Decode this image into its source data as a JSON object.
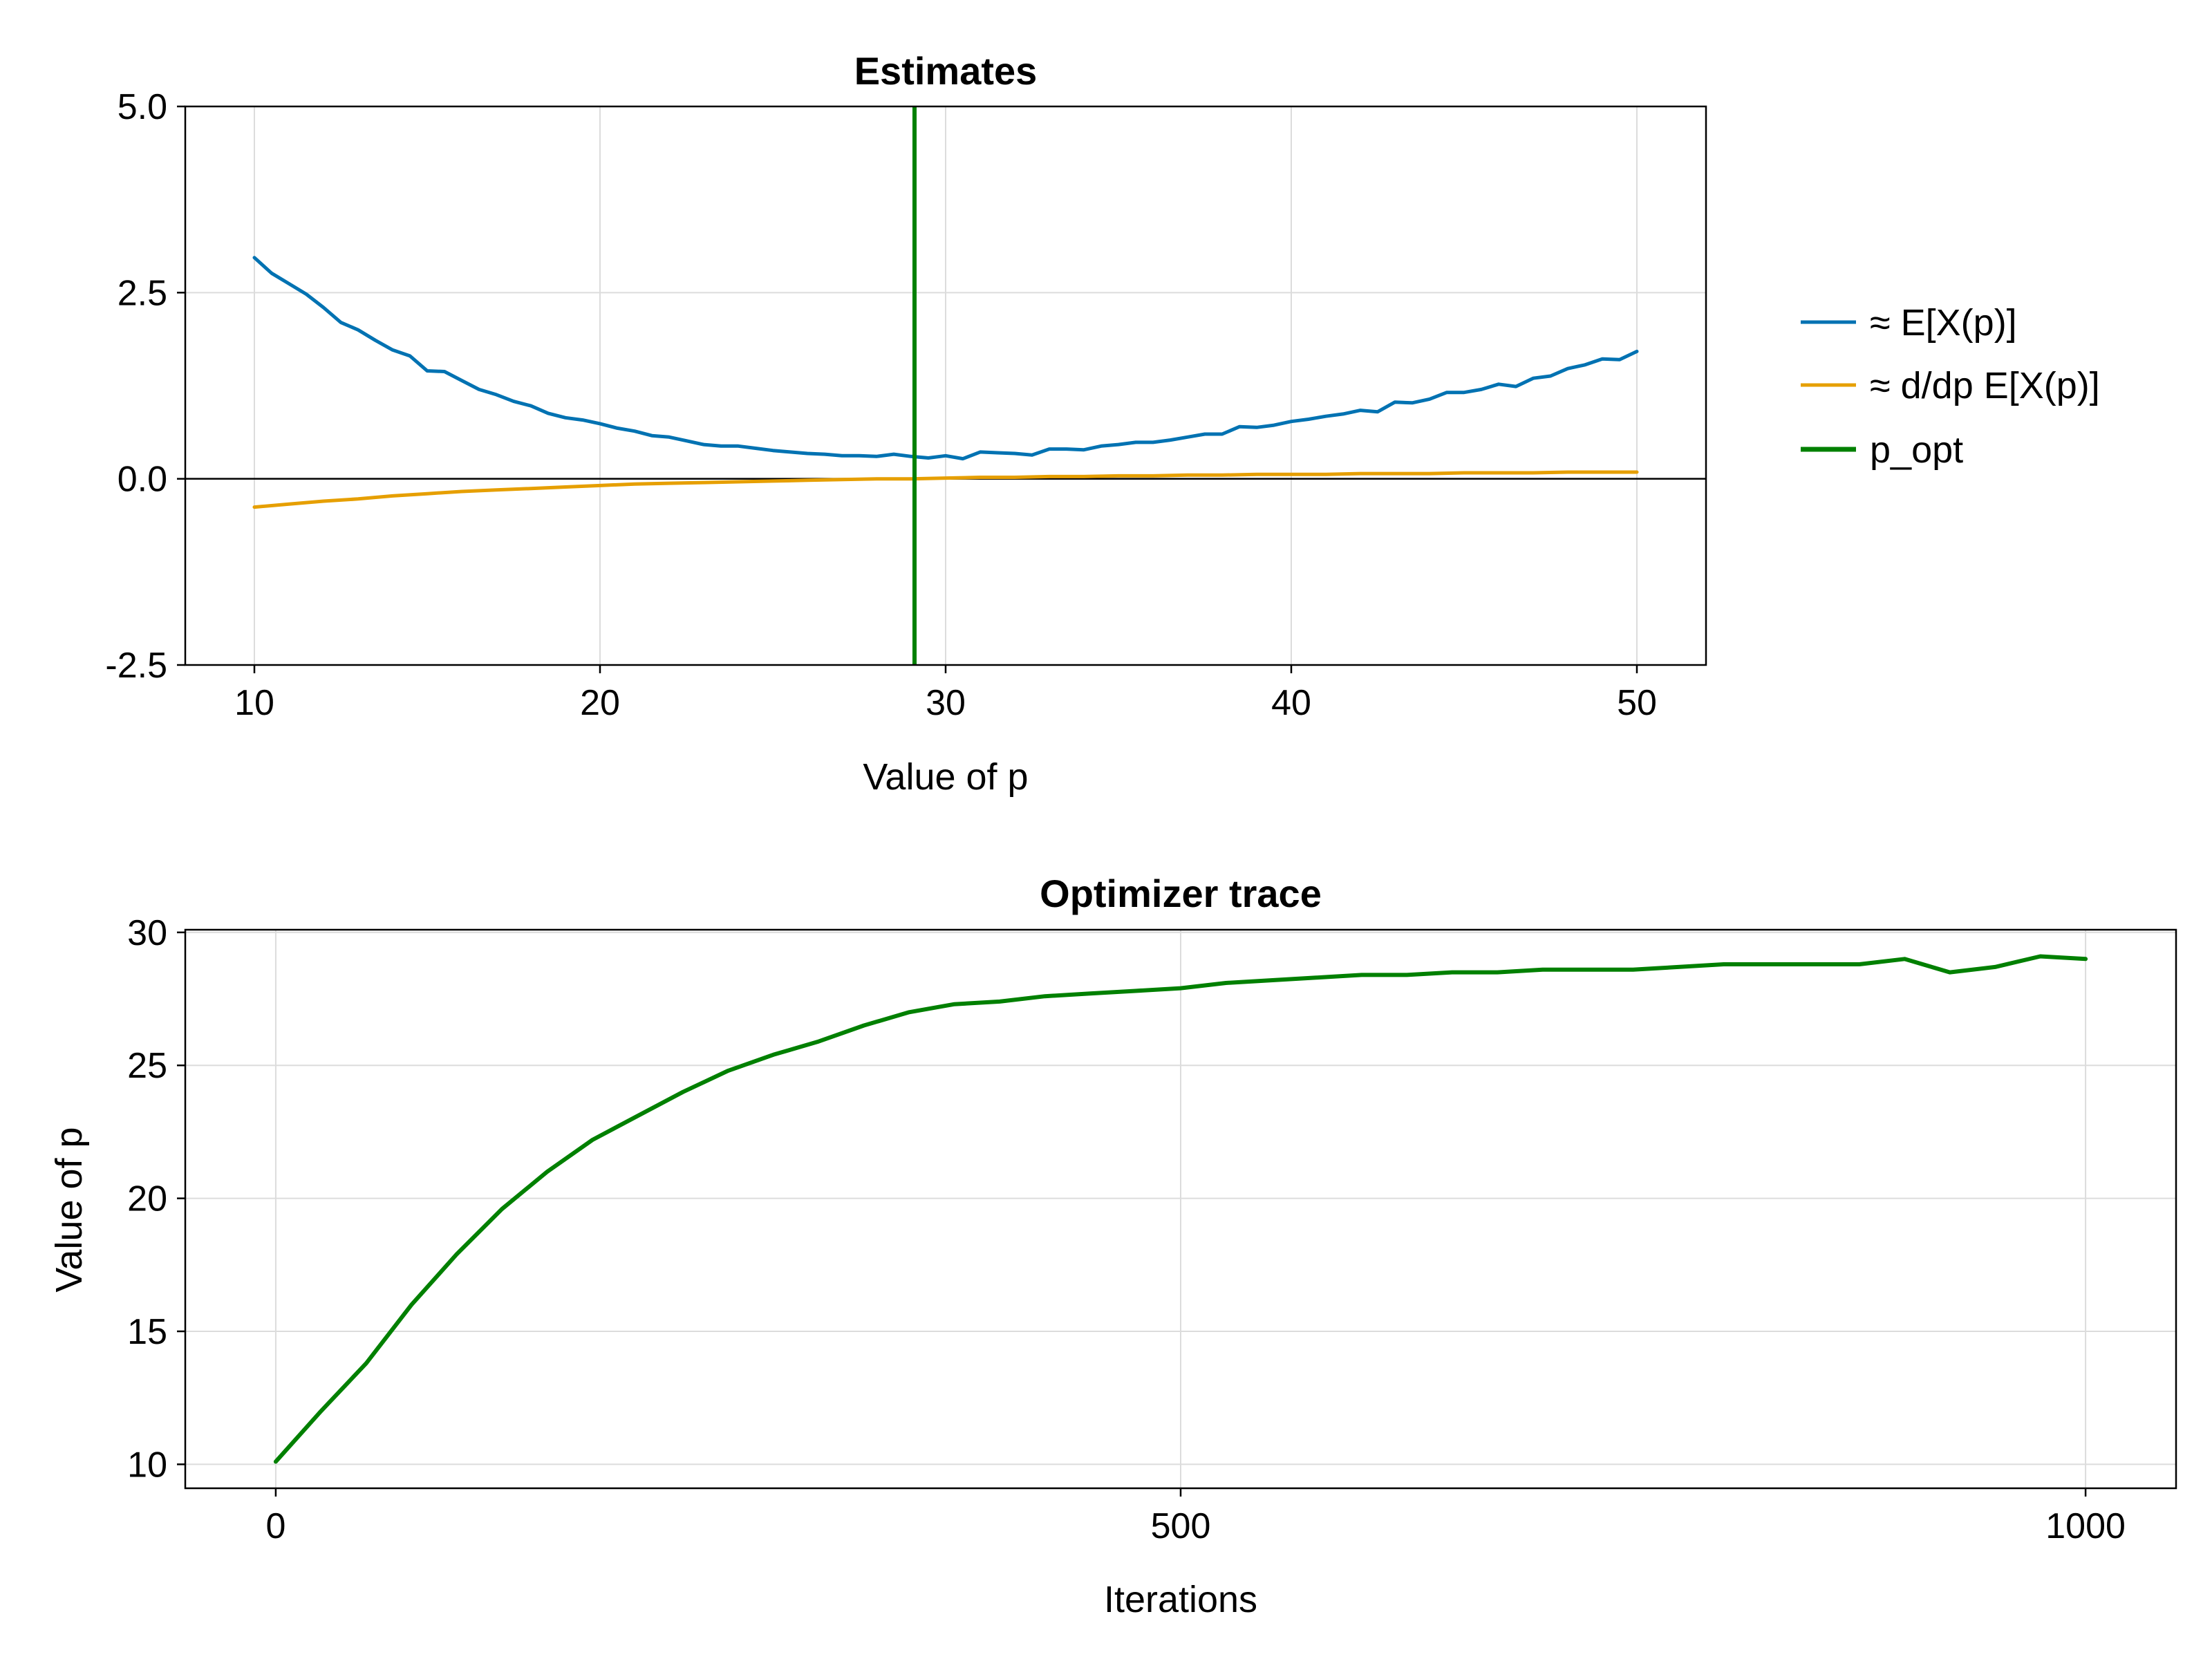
{
  "colors": {
    "blue": "#0072b2",
    "orange": "#e69f00",
    "green": "#008000",
    "zero_line": "#000000"
  },
  "chart_data": [
    {
      "type": "line",
      "title": "Estimates",
      "xlabel": "Value of p",
      "ylabel": "",
      "xlim": [
        8,
        52
      ],
      "ylim": [
        -2.5,
        5.0
      ],
      "xticks": [
        10,
        20,
        30,
        40,
        50
      ],
      "xtick_labels": [
        "10",
        "20",
        "30",
        "40",
        "50"
      ],
      "yticks": [
        -2.5,
        0.0,
        2.5,
        5.0
      ],
      "ytick_labels": [
        "-2.5",
        "0.0",
        "2.5",
        "5.0"
      ],
      "grid": true,
      "legend_position": "right",
      "hline": 0.0,
      "vline": {
        "name": "p_opt",
        "x": 29.1
      },
      "series": [
        {
          "name": "≈ E[X(p)]",
          "x": [
            10,
            10.5,
            11,
            11.5,
            12,
            12.5,
            13,
            13.5,
            14,
            14.5,
            15,
            15.5,
            16,
            16.5,
            17,
            17.5,
            18,
            18.5,
            19,
            19.5,
            20,
            20.5,
            21,
            21.5,
            22,
            22.5,
            23,
            23.5,
            24,
            24.5,
            25,
            25.5,
            26,
            26.5,
            27,
            27.5,
            28,
            28.5,
            29,
            29.5,
            30,
            30.5,
            31,
            31.5,
            32,
            32.5,
            33,
            33.5,
            34,
            34.5,
            35,
            35.5,
            36,
            36.5,
            37,
            37.5,
            38,
            38.5,
            39,
            39.5,
            40,
            40.5,
            41,
            41.5,
            42,
            42.5,
            43,
            43.5,
            44,
            44.5,
            45,
            45.5,
            46,
            46.5,
            47,
            47.5,
            48,
            48.5,
            49,
            49.5,
            50
          ],
          "y": [
            2.97,
            2.76,
            2.62,
            2.48,
            2.3,
            2.1,
            2.0,
            1.86,
            1.73,
            1.65,
            1.45,
            1.44,
            1.32,
            1.2,
            1.13,
            1.04,
            0.98,
            0.88,
            0.82,
            0.79,
            0.74,
            0.68,
            0.64,
            0.58,
            0.56,
            0.51,
            0.46,
            0.44,
            0.44,
            0.41,
            0.38,
            0.36,
            0.34,
            0.33,
            0.31,
            0.31,
            0.3,
            0.33,
            0.3,
            0.28,
            0.31,
            0.27,
            0.36,
            0.35,
            0.34,
            0.32,
            0.4,
            0.4,
            0.39,
            0.44,
            0.46,
            0.49,
            0.49,
            0.52,
            0.56,
            0.6,
            0.6,
            0.7,
            0.69,
            0.72,
            0.77,
            0.8,
            0.84,
            0.87,
            0.92,
            0.9,
            1.03,
            1.02,
            1.07,
            1.16,
            1.16,
            1.2,
            1.27,
            1.24,
            1.35,
            1.38,
            1.48,
            1.53,
            1.61,
            1.6,
            1.71
          ]
        },
        {
          "name": "≈ d/dp E[X(p)]",
          "x": [
            10,
            11,
            12,
            13,
            14,
            15,
            16,
            17,
            18,
            19,
            20,
            21,
            22,
            23,
            24,
            25,
            26,
            27,
            28,
            29,
            30,
            31,
            32,
            33,
            34,
            35,
            36,
            37,
            38,
            39,
            40,
            41,
            42,
            43,
            44,
            45,
            46,
            47,
            48,
            49,
            50
          ],
          "y": [
            -0.38,
            -0.34,
            -0.3,
            -0.27,
            -0.23,
            -0.2,
            -0.17,
            -0.15,
            -0.13,
            -0.11,
            -0.09,
            -0.07,
            -0.06,
            -0.05,
            -0.04,
            -0.03,
            -0.02,
            -0.01,
            0.0,
            0.0,
            0.01,
            0.02,
            0.02,
            0.03,
            0.03,
            0.04,
            0.04,
            0.05,
            0.05,
            0.06,
            0.06,
            0.06,
            0.07,
            0.07,
            0.07,
            0.08,
            0.08,
            0.08,
            0.09,
            0.09,
            0.09
          ]
        }
      ],
      "legend": [
        "≈ E[X(p)]",
        "≈ d/dp E[X(p)]",
        "p_opt"
      ]
    },
    {
      "type": "line",
      "title": "Optimizer trace",
      "xlabel": "Iterations",
      "ylabel": "Value of p",
      "xlim": [
        -50,
        1050
      ],
      "ylim": [
        9.1,
        30.1
      ],
      "xticks": [
        0,
        500,
        1000
      ],
      "xtick_labels": [
        "0",
        "500",
        "1000"
      ],
      "yticks": [
        10,
        15,
        20,
        25,
        30
      ],
      "ytick_labels": [
        "10",
        "15",
        "20",
        "25",
        "30"
      ],
      "grid": true,
      "series": [
        {
          "name": "",
          "x": [
            0,
            25,
            50,
            75,
            100,
            125,
            150,
            175,
            200,
            225,
            250,
            275,
            300,
            325,
            350,
            375,
            400,
            425,
            450,
            475,
            500,
            525,
            550,
            575,
            600,
            625,
            650,
            675,
            700,
            725,
            750,
            775,
            800,
            825,
            850,
            875,
            900,
            925,
            950,
            975,
            1000
          ],
          "y": [
            10.1,
            12.0,
            13.8,
            16.0,
            17.9,
            19.6,
            21.0,
            22.2,
            23.1,
            24.0,
            24.8,
            25.4,
            25.9,
            26.5,
            27.0,
            27.3,
            27.4,
            27.6,
            27.7,
            27.8,
            27.9,
            28.1,
            28.2,
            28.3,
            28.4,
            28.4,
            28.5,
            28.5,
            28.6,
            28.6,
            28.6,
            28.7,
            28.8,
            28.8,
            28.8,
            28.8,
            29.0,
            28.5,
            28.7,
            29.1,
            29.0
          ]
        }
      ]
    }
  ]
}
